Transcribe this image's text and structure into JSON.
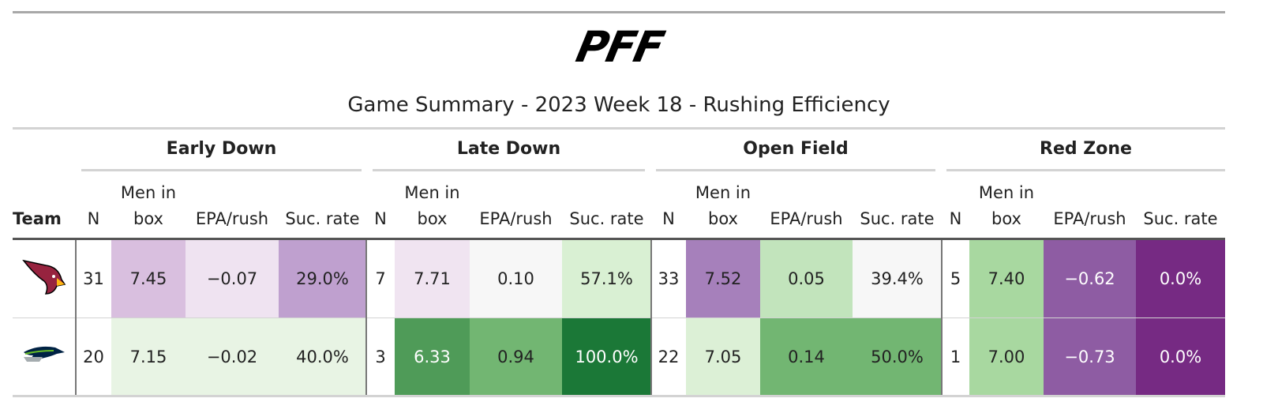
{
  "logo": "PFF",
  "title": "Game Summary - 2023 Week 18 - Rushing Efficiency",
  "table": {
    "groups": [
      "Early Down",
      "Late Down",
      "Open Field",
      "Red Zone"
    ],
    "team_header": "Team",
    "columns": [
      "N",
      "Men in box",
      "EPA/rush",
      "Suc. rate",
      "N",
      "Men in box",
      "EPA/rush",
      "Suc. rate",
      "N",
      "Men in box",
      "EPA/rush",
      "Suc. rate",
      "N",
      "Men in box",
      "EPA/rush",
      "Suc. rate"
    ],
    "rows": [
      [
        "31",
        "7.45",
        "−0.07",
        "29.0%",
        "7",
        "7.71",
        "0.10",
        "57.1%",
        "33",
        "7.52",
        "0.05",
        "39.4%",
        "5",
        "7.40",
        "−0.62",
        "0.0%"
      ],
      [
        "20",
        "7.15",
        "−0.02",
        "40.0%",
        "3",
        "6.33",
        "0.94",
        "100.0%",
        "22",
        "7.05",
        "0.14",
        "50.0%",
        "1",
        "7.00",
        "−0.73",
        "0.0%"
      ]
    ],
    "cell_colors": [
      [
        "#ffffff",
        "#d9bfdf",
        "#efe3f1",
        "#bfa0cf",
        "#ffffff",
        "#f0e4f1",
        "#f7f7f7",
        "#d9f0d3",
        "#ffffff",
        "#a680bb",
        "#c2e4bc",
        "#f7f7f7",
        "#ffffff",
        "#a8d8a0",
        "#8e5ca3",
        "#762a83"
      ],
      [
        "#ffffff",
        "#e8f4e4",
        "#e8f4e4",
        "#e8f4e4",
        "#ffffff",
        "#4f9b58",
        "#72b672",
        "#1b7837",
        "#ffffff",
        "#dcf0d6",
        "#72b672",
        "#72b672",
        "#ffffff",
        "#a8d8a0",
        "#8e5ca3",
        "#762a83"
      ]
    ]
  }
}
